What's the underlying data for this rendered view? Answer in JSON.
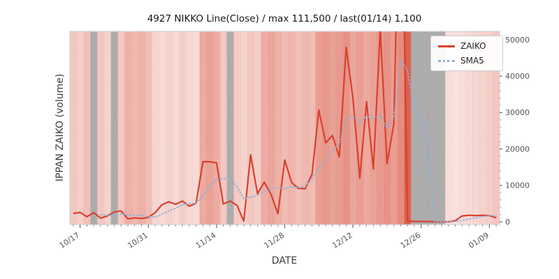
{
  "chart_data": {
    "type": "line",
    "title": "4927 NIKKO Line(Close) / max 111,500 / last(01/14) 1,100",
    "xlabel": "DATE",
    "ylabel": "IPPAN ZAIKO (volume)",
    "max_note": "max 111,500",
    "last_note": "last(01/14) 1,100",
    "ylim": [
      0,
      52300
    ],
    "y_ticks": [
      0,
      10000,
      20000,
      30000,
      40000,
      50000
    ],
    "x_tick_labels": [
      "10/17",
      "10/31",
      "11/14",
      "11/28",
      "12/12",
      "12/26",
      "01/09"
    ],
    "x_tick_indices": [
      1,
      11,
      21,
      31,
      41,
      51,
      61
    ],
    "x": [
      "10/16",
      "10/17",
      "10/18",
      "10/19",
      "10/20",
      "10/21",
      "10/24",
      "10/25",
      "10/26",
      "10/27",
      "10/28",
      "10/31",
      "11/01",
      "11/02",
      "11/03",
      "11/04",
      "11/07",
      "11/08",
      "11/09",
      "11/10",
      "11/11",
      "11/14",
      "11/15",
      "11/16",
      "11/17",
      "11/18",
      "11/21",
      "11/22",
      "11/23",
      "11/24",
      "11/25",
      "11/28",
      "11/29",
      "11/30",
      "12/01",
      "12/02",
      "12/05",
      "12/06",
      "12/07",
      "12/08",
      "12/09",
      "12/12",
      "12/13",
      "12/14",
      "12/15",
      "12/16",
      "12/19",
      "12/20",
      "12/21",
      "12/22",
      "12/23",
      "12/26",
      "12/27",
      "12/28",
      "12/29",
      "12/30",
      "01/02",
      "01/03",
      "01/04",
      "01/05",
      "01/06",
      "01/09",
      "01/14"
    ],
    "series": [
      {
        "name": "ZAIKO",
        "color": "#d9402e",
        "style": "solid",
        "values": [
          2300,
          2600,
          1400,
          2500,
          1000,
          1600,
          2700,
          3000,
          800,
          1100,
          900,
          1200,
          2500,
          4700,
          5500,
          4800,
          5700,
          4300,
          5100,
          16500,
          16500,
          16200,
          4900,
          5700,
          4500,
          200,
          18400,
          7700,
          10900,
          7500,
          2200,
          17000,
          10800,
          9200,
          9100,
          13000,
          30700,
          21700,
          23700,
          17800,
          47900,
          34000,
          12000,
          33000,
          14500,
          53000,
          16000,
          27000,
          111500,
          300,
          100,
          100,
          100,
          0,
          0,
          0,
          300,
          1600,
          1800,
          1700,
          1800,
          1700,
          1100
        ]
      },
      {
        "name": "SMA5",
        "color": "#8fb1d8",
        "style": "dotted",
        "values": [
          null,
          null,
          null,
          null,
          1960,
          1820,
          1840,
          2160,
          1820,
          1840,
          1700,
          1400,
          1300,
          2080,
          2960,
          3740,
          4640,
          5000,
          5080,
          7280,
          9620,
          11720,
          11840,
          11960,
          9560,
          6300,
          6740,
          7300,
          8340,
          8940,
          9340,
          9060,
          9680,
          9340,
          9660,
          11820,
          14560,
          16740,
          19640,
          21380,
          28360,
          29020,
          27080,
          28940,
          28280,
          29300,
          25700,
          28700,
          44400,
          41560,
          30980,
          27800,
          22420,
          120,
          60,
          40,
          80,
          380,
          740,
          1080,
          1440,
          1720,
          1620
        ]
      }
    ],
    "legend": {
      "position": "upper right"
    },
    "background": {
      "heat_color": "#d64530",
      "gray_color": "#8c8c8c",
      "gray_days": [
        3,
        6,
        23,
        50,
        51,
        52,
        53,
        54
      ],
      "day_heat": [
        0.3,
        0.26,
        0.34,
        0,
        0.3,
        0.24,
        0,
        0.3,
        0.42,
        0.38,
        0.42,
        0.36,
        0.22,
        0.2,
        0.24,
        0.2,
        0.26,
        0.22,
        0.2,
        0.46,
        0.5,
        0.44,
        0.3,
        0,
        0.28,
        0.24,
        0.3,
        0.26,
        0.44,
        0.48,
        0.42,
        0.36,
        0.4,
        0.34,
        0.38,
        0.36,
        0.52,
        0.56,
        0.5,
        0.54,
        0.58,
        0.48,
        0.52,
        0.46,
        0.5,
        0.54,
        0.58,
        0.52,
        0.62,
        0.85,
        0,
        0,
        0,
        0,
        0,
        0.18,
        0.16,
        0.18,
        0.2,
        0.22,
        0.24,
        0.26,
        0.3
      ]
    }
  }
}
